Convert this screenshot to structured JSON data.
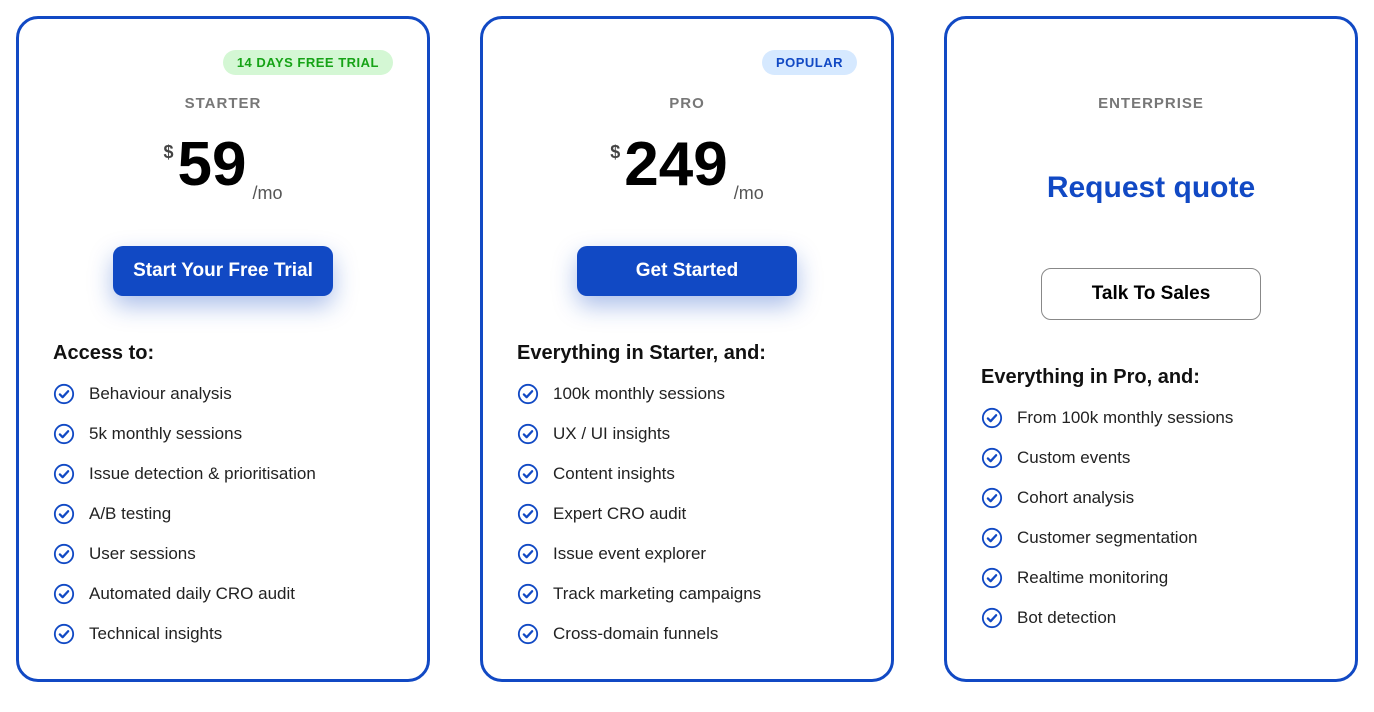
{
  "colors": {
    "border": "#1149c4",
    "accent": "#1149c4",
    "badge_green_bg": "#d4f7d4",
    "badge_green_fg": "#16a316",
    "badge_blue_bg": "#d6e9ff",
    "badge_blue_fg": "#1149c4",
    "tier_text": "#777777",
    "button_shadow": "rgba(17,73,196,0.35)"
  },
  "cards": {
    "starter": {
      "badge": "14 DAYS FREE TRIAL",
      "tier": "STARTER",
      "currency": "$",
      "price": "59",
      "period": "/mo",
      "cta": "Start Your Free Trial",
      "heading": "Access to:",
      "features": [
        "Behaviour analysis",
        "5k monthly sessions",
        "Issue detection & prioritisation",
        "A/B testing",
        "User sessions",
        "Automated daily CRO audit",
        "Technical insights"
      ]
    },
    "pro": {
      "badge": "POPULAR",
      "tier": "PRO",
      "currency": "$",
      "price": "249",
      "period": "/mo",
      "cta": "Get Started",
      "heading": "Everything in Starter, and:",
      "features": [
        "100k monthly sessions",
        "UX / UI insights",
        "Content insights",
        "Expert CRO audit",
        "Issue event explorer",
        "Track marketing campaigns",
        "Cross-domain funnels"
      ]
    },
    "enterprise": {
      "tier": "ENTERPRISE",
      "quote_label": "Request quote",
      "cta": "Talk To Sales",
      "heading": "Everything in Pro, and:",
      "features": [
        "From 100k monthly sessions",
        "Custom events",
        "Cohort analysis",
        "Customer segmentation",
        "Realtime monitoring",
        "Bot detection"
      ]
    }
  }
}
